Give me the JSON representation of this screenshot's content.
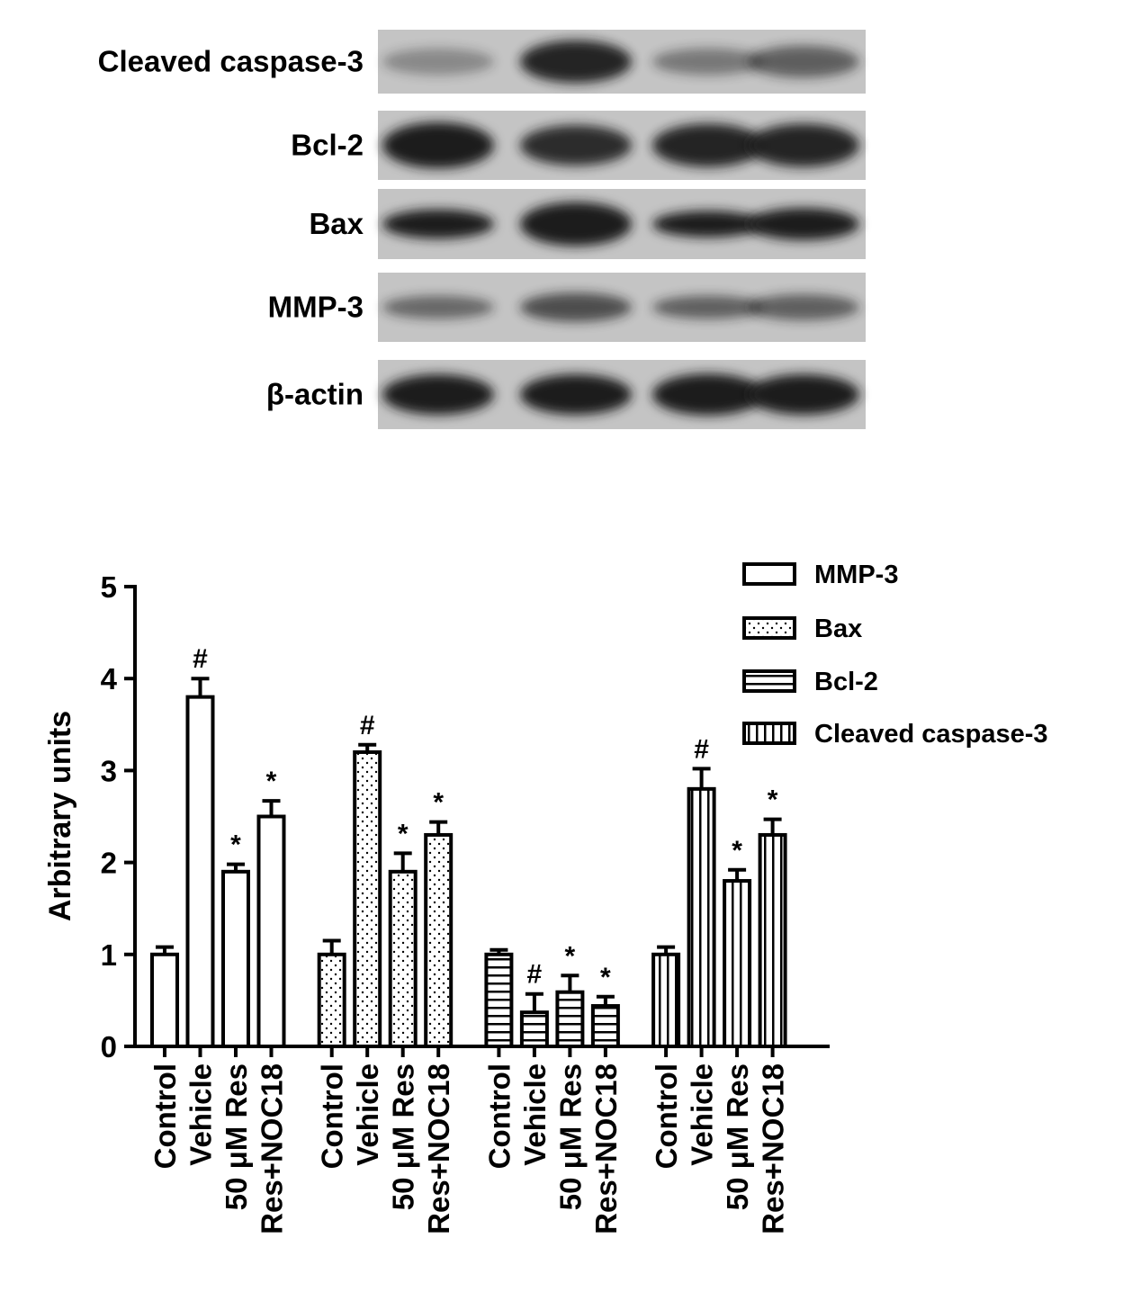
{
  "blot": {
    "rows": [
      "Cleaved caspase-3",
      "Bcl-2",
      "Bax",
      "MMP-3",
      "β-actin"
    ]
  },
  "chart_data": {
    "type": "bar",
    "ylabel": "Arbitrary units",
    "categories": [
      "Control",
      "Vehicle",
      "50 μM Res",
      "Res+NOC18"
    ],
    "series": [
      {
        "name": "MMP-3",
        "color": "#000000",
        "pattern": "none",
        "values": [
          1.0,
          3.8,
          1.9,
          2.5
        ],
        "errors": [
          0.08,
          0.2,
          0.08,
          0.17
        ],
        "markers": [
          null,
          "#",
          "*",
          "*"
        ]
      },
      {
        "name": "Bax",
        "color": "#000000",
        "pattern": "dots",
        "values": [
          1.0,
          3.2,
          1.9,
          2.3
        ],
        "errors": [
          0.15,
          0.08,
          0.2,
          0.14
        ],
        "markers": [
          null,
          "#",
          "*",
          "*"
        ]
      },
      {
        "name": "Bcl-2",
        "color": "#000000",
        "pattern": "horizontal",
        "values": [
          1.0,
          0.37,
          0.59,
          0.44
        ],
        "errors": [
          0.05,
          0.2,
          0.18,
          0.1
        ],
        "markers": [
          null,
          "#",
          "*",
          "*"
        ]
      },
      {
        "name": "Cleaved caspase-3",
        "color": "#000000",
        "pattern": "vertical",
        "values": [
          1.0,
          2.8,
          1.8,
          2.3
        ],
        "errors": [
          0.08,
          0.22,
          0.12,
          0.17
        ],
        "markers": [
          null,
          "#",
          "*",
          "*"
        ]
      }
    ],
    "ylim": [
      0,
      5
    ],
    "yticks": [
      0,
      1,
      2,
      3,
      4,
      5
    ],
    "legend": "upper-right"
  }
}
